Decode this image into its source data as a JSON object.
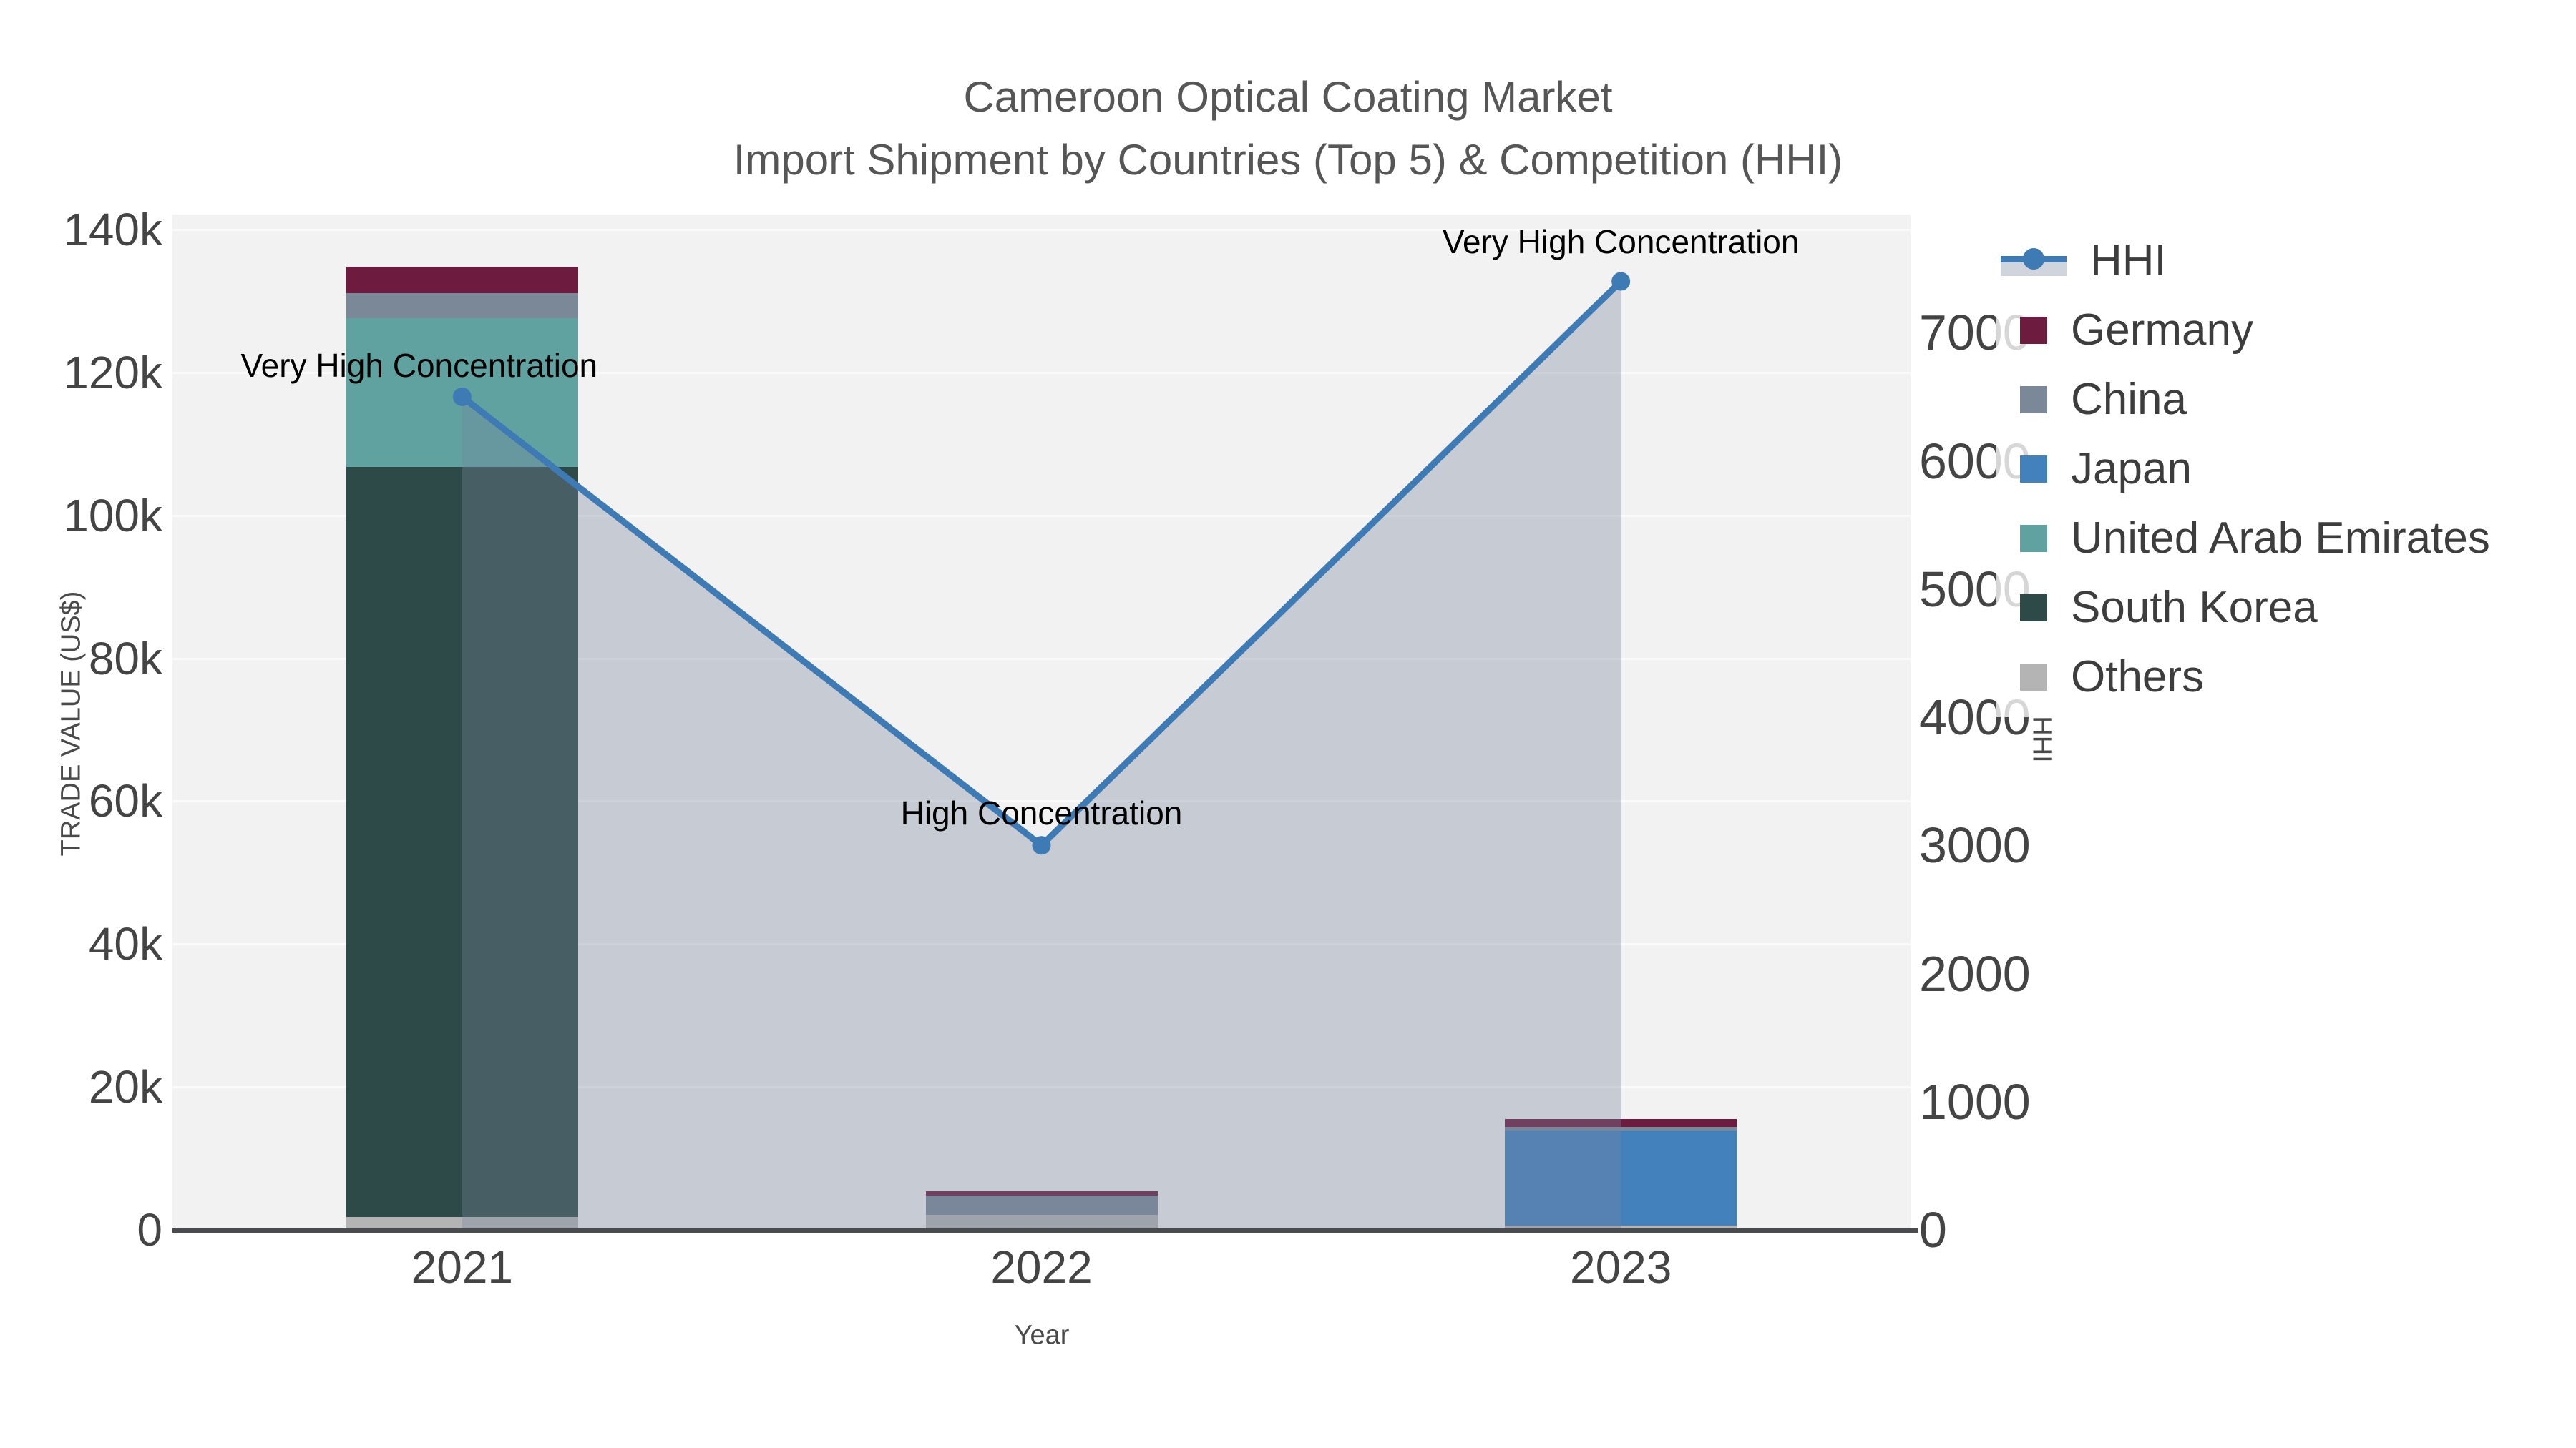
{
  "title": {
    "line1": "Cameroon Optical Coating Market",
    "line2": "Import Shipment by Countries (Top 5) & Competition (HHI)"
  },
  "chart_data": {
    "type": "bar+line",
    "subtype": "stacked bars (left axis) with HHI line and area fill (right axis)",
    "categories": [
      "2021",
      "2022",
      "2023"
    ],
    "bar_series": [
      {
        "name": "Germany",
        "color": "#6d1c3f",
        "values": [
          3700,
          600,
          1100
        ]
      },
      {
        "name": "China",
        "color": "#7b8898",
        "values": [
          3500,
          2700,
          500
        ]
      },
      {
        "name": "Japan",
        "color": "#4381bd",
        "values": [
          0,
          0,
          13300
        ]
      },
      {
        "name": "United Arab Emirates",
        "color": "#5fa2a0",
        "values": [
          20800,
          0,
          0
        ]
      },
      {
        "name": "South Korea",
        "color": "#2d4a48",
        "values": [
          105000,
          0,
          0
        ]
      },
      {
        "name": "Others",
        "color": "#b4b4b4",
        "values": [
          1800,
          2100,
          600
        ]
      }
    ],
    "stack_order_bottom_to_top": [
      "Others",
      "South Korea",
      "United Arab Emirates",
      "Japan",
      "China",
      "Germany"
    ],
    "line_series": {
      "name": "HHI",
      "values": [
        6500,
        3000,
        7400
      ]
    },
    "annotations": [
      {
        "category": "2021",
        "text": "Very High Concentration"
      },
      {
        "category": "2022",
        "text": "High Concentration"
      },
      {
        "category": "2023",
        "text": "Very High Concentration"
      }
    ],
    "x_axis": {
      "title": "Year"
    },
    "y_axis": {
      "title": "TRADE VALUE (US$)",
      "ticks": [
        "0",
        "20k",
        "40k",
        "60k",
        "80k",
        "100k",
        "120k",
        "140k"
      ],
      "tick_values": [
        0,
        20000,
        40000,
        60000,
        80000,
        100000,
        120000,
        140000
      ],
      "range": [
        0,
        142000
      ],
      "grid": true
    },
    "y2_axis": {
      "title": "HHI",
      "ticks": [
        "0",
        "1000",
        "2000",
        "3000",
        "4000",
        "5000",
        "6000",
        "7000"
      ],
      "tick_values": [
        0,
        1000,
        2000,
        3000,
        4000,
        5000,
        6000,
        7000
      ],
      "range": [
        0,
        7920
      ],
      "grid": false
    },
    "legend": [
      "HHI",
      "Germany",
      "China",
      "Japan",
      "United Arab Emirates",
      "South Korea",
      "Others"
    ],
    "legend_position": "right"
  },
  "colors": {
    "hhi_line": "#3e7ab3",
    "hhi_marker": "#3e7ab3",
    "hhi_area_fill": "rgba(120,133,158,0.35)",
    "hhi_area_legend": "#d0d4dd",
    "plot_background": "#f1f2f1",
    "gridline": "#fafafa",
    "axis_line": "#4a4b4f",
    "tick_text": "#444444",
    "title_text": "#565656",
    "legend_text": "#3d3d3d",
    "annotation_text": "#000000"
  }
}
